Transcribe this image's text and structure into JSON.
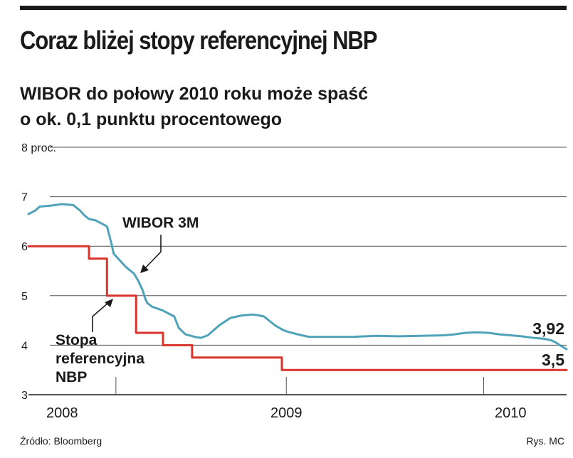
{
  "header": {
    "title": "Coraz bliżej stopy referencyjnej NBP",
    "subtitle_line1": "WIBOR do połowy 2010 roku może spaść",
    "subtitle_line2": "o ok. 0,1 punktu procentowego"
  },
  "footer": {
    "source": "Źródło: Bloomberg",
    "credit": "Rys. MC"
  },
  "colors": {
    "wibor": "#4fa3b8",
    "stopa": "#d9342b",
    "grid": "#555555",
    "text": "#1a1a1a"
  },
  "chart_data": {
    "type": "line",
    "title": "Coraz bliżej stopy referencyjnej NBP",
    "y_unit_label": "8 proc.",
    "ylim": [
      3,
      8
    ],
    "y_ticks": [
      {
        "value": 8,
        "label": "8 proc."
      },
      {
        "value": 7,
        "label": "7"
      },
      {
        "value": 6,
        "label": "6"
      },
      {
        "value": 5,
        "label": "5"
      },
      {
        "value": 4,
        "label": "4"
      },
      {
        "value": 3,
        "label": "3"
      }
    ],
    "xlim": [
      2007.85,
      2010.25
    ],
    "x_labels": [
      {
        "value": 2008.0,
        "label": "2008"
      },
      {
        "value": 2009.0,
        "label": "2009"
      },
      {
        "value": 2010.0,
        "label": "2010"
      }
    ],
    "x_year_ticks": [
      2008.24,
      2009.0,
      2009.88
    ],
    "series": [
      {
        "name": "WIBOR 3M",
        "label": "WIBOR 3M",
        "end_label": "3,92",
        "color_key": "wibor",
        "x": [
          2007.85,
          2007.88,
          2007.9,
          2007.95,
          2008.0,
          2008.05,
          2008.08,
          2008.1,
          2008.12,
          2008.15,
          2008.18,
          2008.2,
          2008.22,
          2008.23,
          2008.24,
          2008.26,
          2008.28,
          2008.3,
          2008.32,
          2008.34,
          2008.36,
          2008.37,
          2008.38,
          2008.4,
          2008.45,
          2008.5,
          2008.52,
          2008.55,
          2008.6,
          2008.62,
          2008.65,
          2008.7,
          2008.75,
          2008.8,
          2008.85,
          2008.88,
          2008.9,
          2008.95,
          2008.98,
          2009.0,
          2009.05,
          2009.1,
          2009.2,
          2009.3,
          2009.4,
          2009.5,
          2009.6,
          2009.7,
          2009.75,
          2009.8,
          2009.85,
          2009.9,
          2009.95,
          2010.0,
          2010.05,
          2010.1,
          2010.15,
          2010.18,
          2010.2,
          2010.22,
          2010.25
        ],
        "y": [
          6.65,
          6.72,
          6.8,
          6.82,
          6.85,
          6.83,
          6.72,
          6.62,
          6.55,
          6.52,
          6.45,
          6.4,
          6.05,
          5.85,
          5.8,
          5.7,
          5.6,
          5.52,
          5.45,
          5.3,
          5.1,
          4.95,
          4.85,
          4.78,
          4.7,
          4.58,
          4.35,
          4.22,
          4.16,
          4.15,
          4.2,
          4.4,
          4.55,
          4.6,
          4.62,
          4.6,
          4.58,
          4.4,
          4.32,
          4.28,
          4.22,
          4.17,
          4.17,
          4.17,
          4.19,
          4.18,
          4.19,
          4.2,
          4.22,
          4.25,
          4.26,
          4.25,
          4.22,
          4.2,
          4.18,
          4.15,
          4.13,
          4.1,
          4.06,
          4.0,
          3.92
        ]
      },
      {
        "name": "Stopa referencyjna NBP",
        "label_lines": [
          "Stopa",
          "referencyjna",
          "NBP"
        ],
        "end_label": "3,5",
        "color_key": "stopa",
        "x": [
          2007.85,
          2008.12,
          2008.12,
          2008.2,
          2008.2,
          2008.33,
          2008.33,
          2008.45,
          2008.45,
          2008.58,
          2008.58,
          2008.98,
          2008.98,
          2010.25
        ],
        "y": [
          6.0,
          6.0,
          5.75,
          5.75,
          5.0,
          5.0,
          4.25,
          4.25,
          4.0,
          4.0,
          3.75,
          3.75,
          3.5,
          3.5
        ]
      }
    ]
  }
}
